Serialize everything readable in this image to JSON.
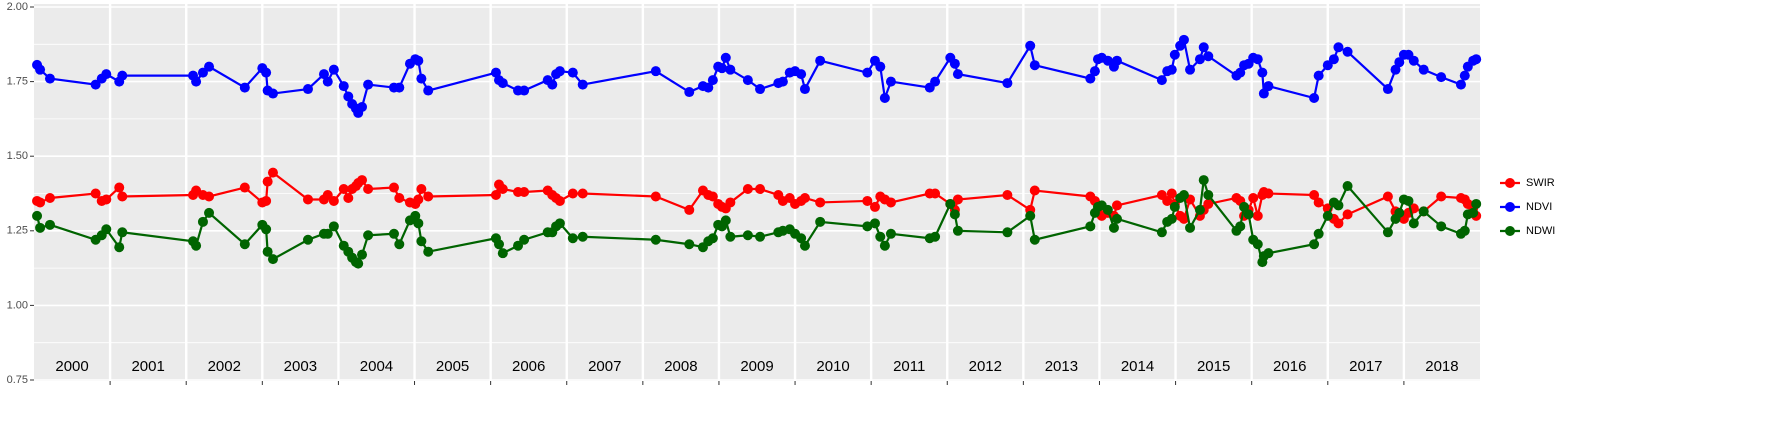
{
  "chart_data": {
    "type": "line",
    "x": [
      2000.04,
      2000.08,
      2000.21,
      2000.81,
      2000.89,
      2000.95,
      2001.12,
      2001.16,
      2002.09,
      2002.13,
      2002.22,
      2002.3,
      2002.77,
      2003.0,
      2003.05,
      2003.07,
      2003.14,
      2003.6,
      2003.81,
      2003.86,
      2003.94,
      2004.07,
      2004.13,
      2004.18,
      2004.23,
      2004.26,
      2004.31,
      2004.39,
      2004.73,
      2004.8,
      2004.94,
      2005.01,
      2005.05,
      2005.09,
      2005.18,
      2006.07,
      2006.11,
      2006.16,
      2006.36,
      2006.44,
      2006.75,
      2006.81,
      2006.86,
      2006.91,
      2007.08,
      2007.21,
      2008.17,
      2008.61,
      2008.79,
      2008.86,
      2008.92,
      2008.99,
      2009.04,
      2009.09,
      2009.15,
      2009.38,
      2009.54,
      2009.78,
      2009.84,
      2009.93,
      2010.0,
      2010.08,
      2010.13,
      2010.33,
      2010.95,
      2011.05,
      2011.12,
      2011.18,
      2011.26,
      2011.77,
      2011.84,
      2012.04,
      2012.1,
      2012.14,
      2012.79,
      2013.09,
      2013.15,
      2013.88,
      2013.94,
      2013.98,
      2014.03,
      2014.11,
      2014.19,
      2014.23,
      2014.82,
      2014.89,
      2014.95,
      2014.99,
      2015.06,
      2015.11,
      2015.19,
      2015.32,
      2015.37,
      2015.43,
      2015.8,
      2015.85,
      2015.9,
      2015.96,
      2016.02,
      2016.08,
      2016.14,
      2016.16,
      2016.22,
      2016.82,
      2016.88,
      2017.0,
      2017.08,
      2017.14,
      2017.26,
      2017.79,
      2017.89,
      2017.94,
      2018.0,
      2018.06,
      2018.13,
      2018.26,
      2018.49,
      2018.75,
      2018.8,
      2018.84,
      2018.91,
      2018.95
    ],
    "series": [
      {
        "name": "SWIR",
        "color": "#ff0000",
        "values": [
          1.35,
          1.345,
          1.36,
          1.375,
          1.35,
          1.355,
          1.395,
          1.365,
          1.37,
          1.385,
          1.37,
          1.365,
          1.395,
          1.345,
          1.35,
          1.415,
          1.445,
          1.355,
          1.355,
          1.37,
          1.35,
          1.39,
          1.36,
          1.39,
          1.4,
          1.41,
          1.42,
          1.39,
          1.395,
          1.36,
          1.345,
          1.34,
          1.355,
          1.39,
          1.365,
          1.37,
          1.405,
          1.39,
          1.38,
          1.38,
          1.385,
          1.37,
          1.36,
          1.35,
          1.375,
          1.375,
          1.365,
          1.32,
          1.385,
          1.37,
          1.365,
          1.34,
          1.33,
          1.325,
          1.345,
          1.39,
          1.39,
          1.37,
          1.35,
          1.36,
          1.34,
          1.35,
          1.36,
          1.345,
          1.35,
          1.33,
          1.365,
          1.355,
          1.345,
          1.375,
          1.375,
          1.34,
          1.32,
          1.355,
          1.37,
          1.32,
          1.385,
          1.365,
          1.35,
          1.32,
          1.3,
          1.31,
          1.3,
          1.335,
          1.37,
          1.35,
          1.375,
          1.34,
          1.3,
          1.29,
          1.355,
          1.3,
          1.32,
          1.34,
          1.36,
          1.35,
          1.3,
          1.32,
          1.36,
          1.3,
          1.37,
          1.38,
          1.375,
          1.37,
          1.345,
          1.325,
          1.29,
          1.275,
          1.305,
          1.365,
          1.315,
          1.3,
          1.29,
          1.31,
          1.325,
          1.315,
          1.365,
          1.36,
          1.355,
          1.34,
          1.325,
          1.3
        ]
      },
      {
        "name": "NDVI",
        "color": "#0000ff",
        "values": [
          1.806,
          1.79,
          1.76,
          1.74,
          1.76,
          1.775,
          1.75,
          1.77,
          1.77,
          1.75,
          1.78,
          1.8,
          1.73,
          1.795,
          1.78,
          1.72,
          1.71,
          1.725,
          1.775,
          1.75,
          1.79,
          1.735,
          1.7,
          1.675,
          1.66,
          1.645,
          1.665,
          1.74,
          1.73,
          1.73,
          1.81,
          1.825,
          1.82,
          1.76,
          1.72,
          1.78,
          1.755,
          1.745,
          1.72,
          1.72,
          1.755,
          1.74,
          1.775,
          1.785,
          1.78,
          1.74,
          1.785,
          1.715,
          1.735,
          1.73,
          1.755,
          1.8,
          1.795,
          1.83,
          1.79,
          1.755,
          1.725,
          1.745,
          1.75,
          1.78,
          1.785,
          1.775,
          1.725,
          1.82,
          1.78,
          1.82,
          1.8,
          1.695,
          1.75,
          1.73,
          1.75,
          1.83,
          1.81,
          1.775,
          1.745,
          1.87,
          1.805,
          1.76,
          1.785,
          1.825,
          1.83,
          1.82,
          1.8,
          1.82,
          1.755,
          1.785,
          1.79,
          1.84,
          1.87,
          1.89,
          1.79,
          1.825,
          1.865,
          1.835,
          1.77,
          1.78,
          1.805,
          1.81,
          1.83,
          1.825,
          1.78,
          1.71,
          1.735,
          1.695,
          1.77,
          1.805,
          1.825,
          1.865,
          1.85,
          1.725,
          1.79,
          1.815,
          1.84,
          1.84,
          1.82,
          1.79,
          1.765,
          1.74,
          1.77,
          1.8,
          1.82,
          1.825
        ]
      },
      {
        "name": "NDWI",
        "color": "#006400",
        "values": [
          1.3,
          1.26,
          1.27,
          1.22,
          1.235,
          1.255,
          1.195,
          1.245,
          1.215,
          1.2,
          1.28,
          1.31,
          1.205,
          1.27,
          1.255,
          1.18,
          1.155,
          1.22,
          1.24,
          1.24,
          1.265,
          1.2,
          1.18,
          1.16,
          1.145,
          1.14,
          1.17,
          1.235,
          1.24,
          1.205,
          1.285,
          1.3,
          1.275,
          1.215,
          1.18,
          1.225,
          1.205,
          1.175,
          1.2,
          1.22,
          1.245,
          1.245,
          1.265,
          1.275,
          1.225,
          1.23,
          1.22,
          1.205,
          1.195,
          1.215,
          1.225,
          1.27,
          1.265,
          1.285,
          1.23,
          1.235,
          1.23,
          1.245,
          1.25,
          1.255,
          1.24,
          1.225,
          1.2,
          1.28,
          1.265,
          1.275,
          1.23,
          1.2,
          1.24,
          1.225,
          1.23,
          1.34,
          1.305,
          1.25,
          1.245,
          1.3,
          1.22,
          1.265,
          1.31,
          1.33,
          1.335,
          1.32,
          1.26,
          1.29,
          1.245,
          1.28,
          1.29,
          1.33,
          1.36,
          1.37,
          1.26,
          1.32,
          1.42,
          1.37,
          1.25,
          1.265,
          1.33,
          1.305,
          1.22,
          1.205,
          1.145,
          1.165,
          1.175,
          1.205,
          1.24,
          1.3,
          1.345,
          1.335,
          1.4,
          1.245,
          1.29,
          1.31,
          1.355,
          1.35,
          1.275,
          1.315,
          1.265,
          1.24,
          1.25,
          1.305,
          1.31,
          1.34
        ]
      }
    ],
    "xlim": [
      2000,
      2019
    ],
    "xticks": [
      2001,
      2002,
      2003,
      2004,
      2005,
      2006,
      2007,
      2008,
      2009,
      2010,
      2011,
      2012,
      2013,
      2014,
      2015,
      2016,
      2017,
      2018
    ],
    "year_labels": [
      "2000",
      "2001",
      "2002",
      "2003",
      "2004",
      "2005",
      "2006",
      "2007",
      "2008",
      "2009",
      "2010",
      "2011",
      "2012",
      "2013",
      "2014",
      "2015",
      "2016",
      "2017",
      "2018"
    ],
    "ylim": [
      0.75,
      2.0
    ],
    "yticks": [
      0.75,
      {
        "value": 1.0,
        "label": "1.00"
      },
      1.25,
      {
        "value": 1.5,
        "label": "1.50"
      },
      1.75,
      {
        "value": 2.0,
        "label": "2.00"
      }
    ],
    "y_minor_ticks": [
      0.875,
      1.125,
      1.375,
      1.625,
      1.875
    ],
    "grid": true,
    "legend": "right"
  }
}
